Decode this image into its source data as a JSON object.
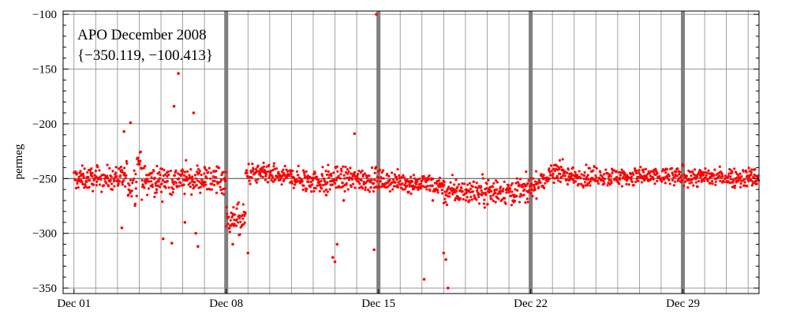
{
  "chart_data": {
    "type": "scatter",
    "title": "APO December 2008",
    "subtitle": "{−350.119, −100.413}",
    "ylabel": "permeg",
    "xlabel": "",
    "x_unit": "days since Dec 01 (0 = Dec 01)",
    "xlim": [
      -0.5,
      31.5
    ],
    "ylim": [
      -355,
      -97
    ],
    "y_ticks": [
      -100,
      -150,
      -200,
      -250,
      -300,
      -350
    ],
    "y_tick_labels": [
      "−100",
      "−150",
      "−200",
      "−250",
      "−300",
      "−350"
    ],
    "x_ticks": [
      0,
      7,
      14,
      21,
      28
    ],
    "x_tick_labels": [
      "Dec 01",
      "Dec 08",
      "Dec 15",
      "Dec 22",
      "Dec 29"
    ],
    "minor_gridlines_per_day": true,
    "major_vertical_markers": [
      7,
      14,
      21,
      28
    ],
    "reference_line": -250,
    "grid": true,
    "series_color": "#ff0000",
    "marker_color": "#7f7f7f",
    "segments": [
      {
        "x0": 0.0,
        "x1": 2.0,
        "y0": -250,
        "y1": -250,
        "spread": 7
      },
      {
        "x0": 2.0,
        "x1": 2.4,
        "y0": -250,
        "y1": -250,
        "spread": 8
      },
      {
        "x0": 2.4,
        "x1": 2.9,
        "y0": -255,
        "y1": -255,
        "spread": 12
      },
      {
        "x0": 2.9,
        "x1": 3.1,
        "y0": -233,
        "y1": -233,
        "spread": 8
      },
      {
        "x0": 3.1,
        "x1": 7.0,
        "y0": -252,
        "y1": -250,
        "spread": 9
      },
      {
        "x0": 7.0,
        "x1": 7.9,
        "y0": -288,
        "y1": -288,
        "spread": 9
      },
      {
        "x0": 7.9,
        "x1": 10.5,
        "y0": -245,
        "y1": -250,
        "spread": 6
      },
      {
        "x0": 10.5,
        "x1": 14.0,
        "y0": -252,
        "y1": -250,
        "spread": 8
      },
      {
        "x0": 14.0,
        "x1": 17.0,
        "y0": -252,
        "y1": -256,
        "spread": 6
      },
      {
        "x0": 17.0,
        "x1": 21.0,
        "y0": -262,
        "y1": -261,
        "spread": 8
      },
      {
        "x0": 21.0,
        "x1": 22.5,
        "y0": -258,
        "y1": -240,
        "spread": 7
      },
      {
        "x0": 22.5,
        "x1": 31.5,
        "y0": -248,
        "y1": -249,
        "spread": 6
      }
    ],
    "outliers": [
      [
        2.3,
        -207
      ],
      [
        2.6,
        -199
      ],
      [
        2.5,
        -265
      ],
      [
        2.2,
        -295
      ],
      [
        3.8,
        -260
      ],
      [
        4.1,
        -305
      ],
      [
        4.5,
        -309
      ],
      [
        4.6,
        -184
      ],
      [
        4.8,
        -154
      ],
      [
        5.1,
        -290
      ],
      [
        5.5,
        -190
      ],
      [
        5.6,
        -300
      ],
      [
        5.7,
        -312
      ],
      [
        7.3,
        -310
      ],
      [
        8.0,
        -318
      ],
      [
        11.6,
        -265
      ],
      [
        11.9,
        -322
      ],
      [
        12.0,
        -326
      ],
      [
        12.1,
        -310
      ],
      [
        12.4,
        -270
      ],
      [
        12.9,
        -209
      ],
      [
        13.8,
        -315
      ],
      [
        13.9,
        -100
      ],
      [
        16.1,
        -342
      ],
      [
        16.5,
        -270
      ],
      [
        17.0,
        -318
      ],
      [
        17.1,
        -324
      ],
      [
        17.2,
        -350
      ]
    ]
  }
}
